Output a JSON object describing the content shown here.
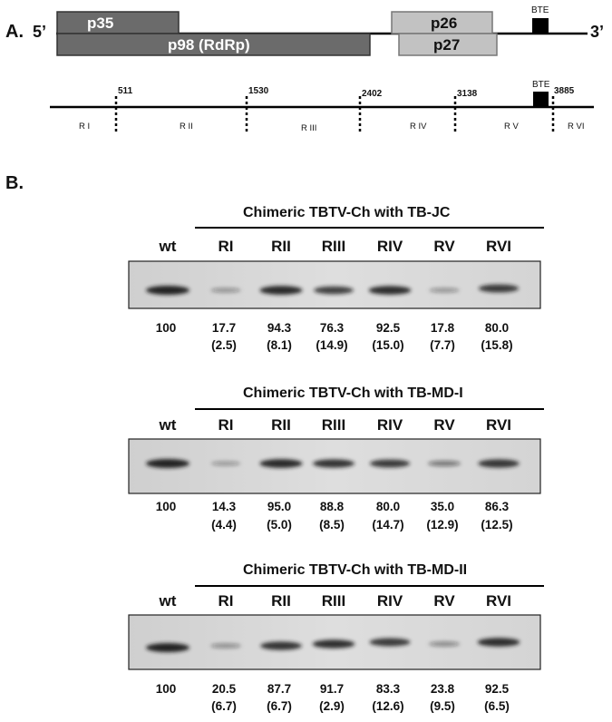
{
  "panel_a": {
    "label": "A.",
    "five_prime": "5’",
    "three_prime": "3’",
    "orfs": {
      "p35": "p35",
      "p98": "p98 (RdRp)",
      "p26": "p26",
      "p27": "p27"
    },
    "bte_label_top": "BTE",
    "bte_label_map": "BTE",
    "positions": [
      "511",
      "1530",
      "2402",
      "3138",
      "3885"
    ],
    "regions": [
      "R I",
      "R II",
      "R III",
      "R IV",
      "R V",
      "R VI"
    ]
  },
  "panel_b": {
    "label": "B.",
    "blots": [
      {
        "title": "Chimeric TBTV-Ch with TB-JC",
        "lanes": [
          "wt",
          "RI",
          "RII",
          "RIII",
          "RIV",
          "RV",
          "RVI"
        ],
        "values": [
          "100",
          "17.7",
          "94.3",
          "76.3",
          "92.5",
          "17.8",
          "80.0"
        ],
        "sd": [
          "",
          "(2.5)",
          "(8.1)",
          "(14.9)",
          "(15.0)",
          "(7.7)",
          "(15.8)"
        ]
      },
      {
        "title": "Chimeric TBTV-Ch with TB-MD-I",
        "lanes": [
          "wt",
          "RI",
          "RII",
          "RIII",
          "RIV",
          "RV",
          "RVI"
        ],
        "values": [
          "100",
          "14.3",
          "95.0",
          "88.8",
          "80.0",
          "35.0",
          "86.3"
        ],
        "sd": [
          "",
          "(4.4)",
          "(5.0)",
          "(8.5)",
          "(14.7)",
          "(12.9)",
          "(12.5)"
        ]
      },
      {
        "title": "Chimeric TBTV-Ch with TB-MD-II",
        "lanes": [
          "wt",
          "RI",
          "RII",
          "RIII",
          "RIV",
          "RV",
          "RVI"
        ],
        "values": [
          "100",
          "20.5",
          "87.7",
          "91.7",
          "83.3",
          "23.8",
          "92.5"
        ],
        "sd": [
          "",
          "(6.7)",
          "(6.7)",
          "(2.9)",
          "(12.6)",
          "(9.5)",
          "(6.5)"
        ]
      }
    ]
  },
  "colors": {
    "orf_dark": "#6b6b6b",
    "orf_light": "#c2c2c2",
    "bte": "#000000",
    "blot_bg": "#d9d9d9",
    "band": "#1c1c1c"
  }
}
